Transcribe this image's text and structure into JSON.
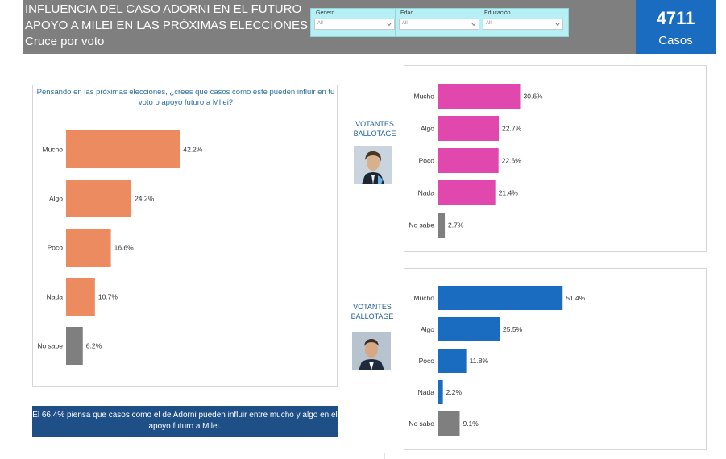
{
  "header": {
    "title_line1": "INFLUENCIA DEL CASO ADORNI EN EL FUTURO",
    "title_line2": "APOYO A MILEI EN LAS PRÓXIMAS ELECCIONES",
    "subtitle": "Cruce por voto",
    "cases_count": "4711",
    "cases_label": "Casos"
  },
  "filters": [
    {
      "label": "Género",
      "value": "All"
    },
    {
      "label": "Edad",
      "value": "All"
    },
    {
      "label": "Educación",
      "value": "All"
    }
  ],
  "colors": {
    "header_bg": "#7f7f7f",
    "filter_bg": "#b7f0f4",
    "cases_bg": "#1a6cc0",
    "orange": "#ec8b60",
    "pink": "#e048ae",
    "blue": "#1a6cc0",
    "gray": "#7f7f7f",
    "note_bg": "#1e4f86"
  },
  "sections": {
    "ballotage_label_1": "VOTANTES\nBALLOTAGE",
    "ballotage_label_2": "VOTANTES\nBALLOTAGE"
  },
  "note": "El 66,4% piensa que casos como el de Adorni pueden influir entre mucho y algo en el apoyo futuro a Milei.",
  "chart_data": [
    {
      "type": "bar",
      "orientation": "horizontal",
      "title": "Pensando en las próximas elecciones, ¿crees que casos como este pueden influir en tu voto o apoyo futuro a MIlei?",
      "categories": [
        "Mucho",
        "Algo",
        "Poco",
        "Nada",
        "No sabe"
      ],
      "values": [
        42.2,
        24.2,
        16.6,
        10.7,
        6.2
      ],
      "labels": [
        "42.2%",
        "24.2%",
        "16.6%",
        "10.7%",
        "6.2%"
      ],
      "colors": [
        "#ec8b60",
        "#ec8b60",
        "#ec8b60",
        "#ec8b60",
        "#7f7f7f"
      ],
      "xlim": [
        0,
        100
      ]
    },
    {
      "type": "bar",
      "orientation": "horizontal",
      "categories": [
        "Mucho",
        "Algo",
        "Poco",
        "Nada",
        "No sabe"
      ],
      "values": [
        30.6,
        22.7,
        22.6,
        21.4,
        2.7
      ],
      "labels": [
        "30.6%",
        "22.7%",
        "22.6%",
        "21.4%",
        "2.7%"
      ],
      "colors": [
        "#e048ae",
        "#e048ae",
        "#e048ae",
        "#e048ae",
        "#7f7f7f"
      ],
      "xlim": [
        0,
        100
      ]
    },
    {
      "type": "bar",
      "orientation": "horizontal",
      "categories": [
        "Mucho",
        "Algo",
        "Poco",
        "Nada",
        "No sabe"
      ],
      "values": [
        51.4,
        25.5,
        11.8,
        2.2,
        9.1
      ],
      "labels": [
        "51.4%",
        "25.5%",
        "11.8%",
        "2.2%",
        "9.1%"
      ],
      "colors": [
        "#1a6cc0",
        "#1a6cc0",
        "#1a6cc0",
        "#1a6cc0",
        "#7f7f7f"
      ],
      "xlim": [
        0,
        100
      ]
    }
  ]
}
